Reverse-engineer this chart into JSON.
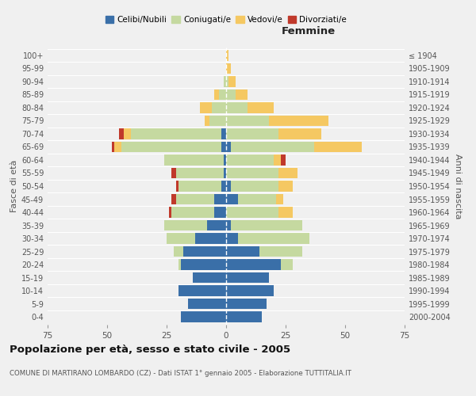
{
  "age_groups": [
    "0-4",
    "5-9",
    "10-14",
    "15-19",
    "20-24",
    "25-29",
    "30-34",
    "35-39",
    "40-44",
    "45-49",
    "50-54",
    "55-59",
    "60-64",
    "65-69",
    "70-74",
    "75-79",
    "80-84",
    "85-89",
    "90-94",
    "95-99",
    "100+"
  ],
  "birth_years": [
    "2000-2004",
    "1995-1999",
    "1990-1994",
    "1985-1989",
    "1980-1984",
    "1975-1979",
    "1970-1974",
    "1965-1969",
    "1960-1964",
    "1955-1959",
    "1950-1954",
    "1945-1949",
    "1940-1944",
    "1935-1939",
    "1930-1934",
    "1925-1929",
    "1920-1924",
    "1915-1919",
    "1910-1914",
    "1905-1909",
    "≤ 1904"
  ],
  "male": {
    "celibi": [
      19,
      16,
      20,
      14,
      19,
      18,
      13,
      8,
      5,
      5,
      2,
      1,
      1,
      2,
      2,
      0,
      0,
      0,
      0,
      0,
      0
    ],
    "coniugati": [
      0,
      0,
      0,
      0,
      1,
      4,
      12,
      18,
      18,
      16,
      18,
      20,
      25,
      42,
      38,
      7,
      6,
      3,
      1,
      0,
      0
    ],
    "vedovi": [
      0,
      0,
      0,
      0,
      0,
      0,
      0,
      0,
      0,
      0,
      0,
      0,
      0,
      3,
      3,
      2,
      5,
      2,
      0,
      0,
      0
    ],
    "divorziati": [
      0,
      0,
      0,
      0,
      0,
      0,
      0,
      0,
      1,
      2,
      1,
      2,
      0,
      1,
      2,
      0,
      0,
      0,
      0,
      0,
      0
    ]
  },
  "female": {
    "nubili": [
      15,
      17,
      20,
      18,
      23,
      14,
      5,
      2,
      0,
      5,
      2,
      0,
      0,
      2,
      0,
      0,
      0,
      0,
      0,
      0,
      0
    ],
    "coniugate": [
      0,
      0,
      0,
      0,
      5,
      18,
      30,
      30,
      22,
      16,
      20,
      22,
      20,
      35,
      22,
      18,
      9,
      4,
      1,
      0,
      0
    ],
    "vedove": [
      0,
      0,
      0,
      0,
      0,
      0,
      0,
      0,
      6,
      3,
      6,
      8,
      3,
      20,
      18,
      25,
      11,
      5,
      3,
      2,
      1
    ],
    "divorziate": [
      0,
      0,
      0,
      0,
      0,
      0,
      0,
      0,
      0,
      0,
      0,
      0,
      2,
      0,
      0,
      0,
      0,
      0,
      0,
      0,
      0
    ]
  },
  "colors": {
    "celibi": "#3a6fa8",
    "coniugati": "#c5d9a0",
    "vedovi": "#f5c862",
    "divorziati": "#c0392b"
  },
  "xlim": 75,
  "title": "Popolazione per età, sesso e stato civile - 2005",
  "subtitle": "COMUNE DI MARTIRANO LOMBARDO (CZ) - Dati ISTAT 1° gennaio 2005 - Elaborazione TUTTITALIA.IT",
  "ylabel_left": "Fasce di età",
  "ylabel_right": "Anni di nascita",
  "xlabel_right": "Femmine",
  "bg_color": "#f0f0f0",
  "bar_height": 0.82
}
